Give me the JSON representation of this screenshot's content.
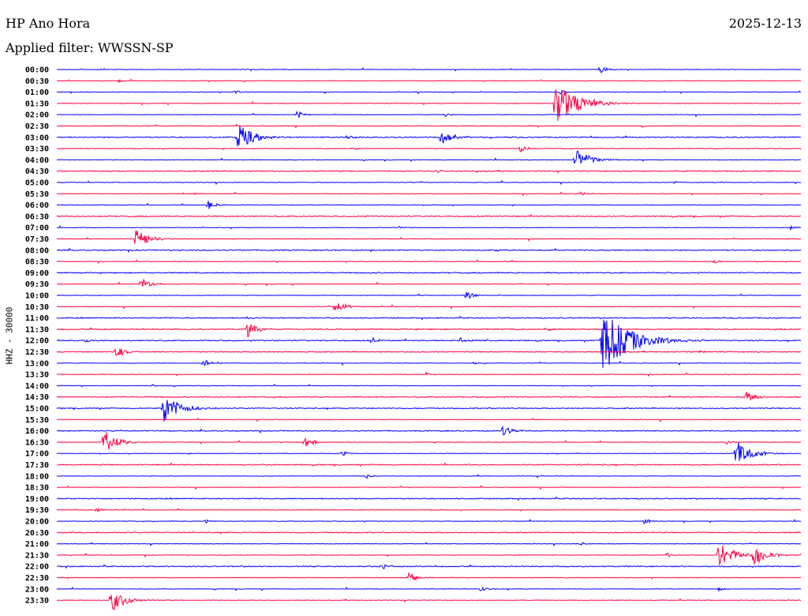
{
  "header": {
    "station": "HP Ano Hora",
    "date": "2025-12-13",
    "filter": "Applied filter: WWSSN-SP"
  },
  "chart_data": {
    "type": "line",
    "title": "HP Ano Hora",
    "ylabel": "HHZ - 30000",
    "colors": [
      "#0000ff",
      "#ff0040"
    ],
    "row_labels": [
      "00:00",
      "00:30",
      "01:00",
      "01:30",
      "02:00",
      "02:30",
      "03:00",
      "03:30",
      "04:00",
      "04:30",
      "05:00",
      "05:30",
      "06:00",
      "06:30",
      "07:00",
      "07:30",
      "08:00",
      "08:30",
      "09:00",
      "09:30",
      "10:00",
      "10:30",
      "11:00",
      "11:30",
      "12:00",
      "12:30",
      "13:00",
      "13:30",
      "14:00",
      "14:30",
      "15:00",
      "15:30",
      "16:00",
      "16:30",
      "17:00",
      "17:30",
      "18:00",
      "18:30",
      "19:00",
      "19:30",
      "20:00",
      "20:30",
      "21:00",
      "21:30",
      "22:00",
      "22:30",
      "23:00",
      "23:30"
    ],
    "row_minutes": 30,
    "noise": [
      1,
      1,
      1,
      1,
      1,
      1,
      2,
      1,
      1,
      2,
      1,
      1,
      1,
      2,
      1,
      1,
      2,
      1,
      2,
      1,
      1,
      1,
      2,
      2,
      2,
      2,
      1,
      1,
      1,
      2,
      2,
      1,
      2,
      1,
      1,
      2,
      1,
      1,
      2,
      1,
      1,
      2,
      1,
      1,
      2,
      1,
      1,
      1
    ],
    "events": [
      {
        "row": 0,
        "minute": 21.9,
        "amp": 6
      },
      {
        "row": 1,
        "minute": 2.5,
        "amp": 2
      },
      {
        "row": 2,
        "minute": 7.2,
        "amp": 3
      },
      {
        "row": 2,
        "minute": 20.3,
        "amp": 3
      },
      {
        "row": 3,
        "minute": 20.1,
        "amp": 30
      },
      {
        "row": 4,
        "minute": 9.7,
        "amp": 5
      },
      {
        "row": 4,
        "minute": 15.7,
        "amp": 3
      },
      {
        "row": 5,
        "minute": 23.6,
        "amp": 2
      },
      {
        "row": 6,
        "minute": 7.3,
        "amp": 18
      },
      {
        "row": 6,
        "minute": 11.7,
        "amp": 4
      },
      {
        "row": 6,
        "minute": 15.5,
        "amp": 12
      },
      {
        "row": 7,
        "minute": 11.9,
        "amp": 3
      },
      {
        "row": 7,
        "minute": 18.7,
        "amp": 5
      },
      {
        "row": 8,
        "minute": 20.9,
        "amp": 16
      },
      {
        "row": 9,
        "minute": 15.4,
        "amp": 2
      },
      {
        "row": 9,
        "minute": 16.9,
        "amp": 2
      },
      {
        "row": 10,
        "minute": 24.9,
        "amp": 2
      },
      {
        "row": 11,
        "minute": 5.5,
        "amp": 2
      },
      {
        "row": 11,
        "minute": 21.1,
        "amp": 4
      },
      {
        "row": 12,
        "minute": 6.1,
        "amp": 6
      },
      {
        "row": 14,
        "minute": 13.8,
        "amp": 2
      },
      {
        "row": 14,
        "minute": 29.6,
        "amp": 3
      },
      {
        "row": 15,
        "minute": 3.2,
        "amp": 14
      },
      {
        "row": 16,
        "minute": 17.7,
        "amp": 2
      },
      {
        "row": 17,
        "minute": 26.5,
        "amp": 3
      },
      {
        "row": 19,
        "minute": 3.4,
        "amp": 9
      },
      {
        "row": 20,
        "minute": 16.5,
        "amp": 6
      },
      {
        "row": 21,
        "minute": 11.2,
        "amp": 10
      },
      {
        "row": 22,
        "minute": 7.7,
        "amp": 2
      },
      {
        "row": 23,
        "minute": 7.7,
        "amp": 10
      },
      {
        "row": 23,
        "minute": 19.7,
        "amp": 4
      },
      {
        "row": 24,
        "minute": 22.0,
        "amp": 40
      },
      {
        "row": 24,
        "minute": 12.7,
        "amp": 5
      },
      {
        "row": 24,
        "minute": 16.3,
        "amp": 4
      },
      {
        "row": 24,
        "minute": 1.1,
        "amp": 3
      },
      {
        "row": 25,
        "minute": 2.4,
        "amp": 8
      },
      {
        "row": 25,
        "minute": 25.9,
        "amp": 2
      },
      {
        "row": 26,
        "minute": 5.9,
        "amp": 5
      },
      {
        "row": 26,
        "minute": 16.8,
        "amp": 2
      },
      {
        "row": 27,
        "minute": 14.9,
        "amp": 3
      },
      {
        "row": 28,
        "minute": 3.8,
        "amp": 2
      },
      {
        "row": 29,
        "minute": 27.8,
        "amp": 8
      },
      {
        "row": 30,
        "minute": 4.3,
        "amp": 20
      },
      {
        "row": 32,
        "minute": 18.0,
        "amp": 8
      },
      {
        "row": 33,
        "minute": 1.9,
        "amp": 16
      },
      {
        "row": 33,
        "minute": 10.0,
        "amp": 8
      },
      {
        "row": 33,
        "minute": 27.0,
        "amp": 3
      },
      {
        "row": 34,
        "minute": 27.4,
        "amp": 18
      },
      {
        "row": 34,
        "minute": 11.5,
        "amp": 4
      },
      {
        "row": 36,
        "minute": 12.5,
        "amp": 3
      },
      {
        "row": 39,
        "minute": 1.6,
        "amp": 3
      },
      {
        "row": 40,
        "minute": 23.7,
        "amp": 4
      },
      {
        "row": 40,
        "minute": 6.0,
        "amp": 3
      },
      {
        "row": 42,
        "minute": 21.1,
        "amp": 3
      },
      {
        "row": 43,
        "minute": 26.7,
        "amp": 18
      },
      {
        "row": 43,
        "minute": 28.1,
        "amp": 14
      },
      {
        "row": 43,
        "minute": 24.6,
        "amp": 3
      },
      {
        "row": 44,
        "minute": 13.1,
        "amp": 4
      },
      {
        "row": 45,
        "minute": 14.2,
        "amp": 8
      },
      {
        "row": 46,
        "minute": 17.1,
        "amp": 4
      },
      {
        "row": 46,
        "minute": 26.7,
        "amp": 3
      },
      {
        "row": 47,
        "minute": 2.2,
        "amp": 16
      }
    ]
  }
}
